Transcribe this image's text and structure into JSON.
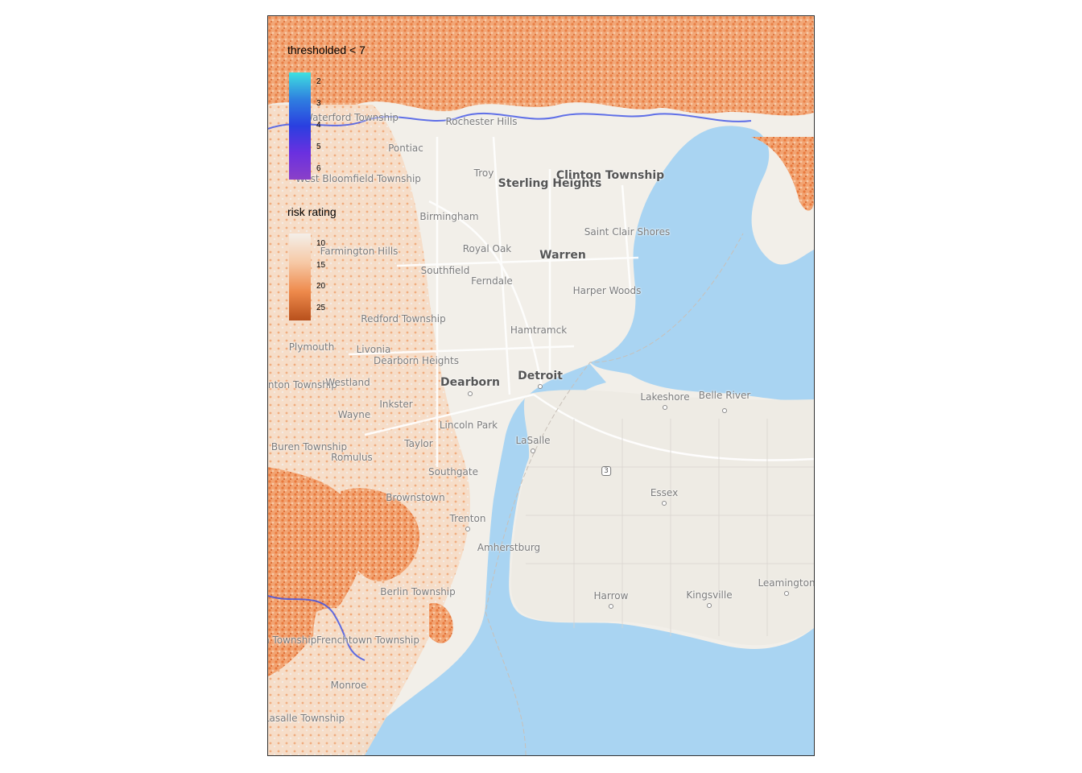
{
  "legends": [
    {
      "title": "thresholded < 7",
      "ticks": [
        "2",
        "3",
        "4",
        "5",
        "6"
      ],
      "colors": [
        "#3fe0e0",
        "#2f7fe0",
        "#2a3fe0",
        "#6a30e0",
        "#8a40c8"
      ]
    },
    {
      "title": "risk rating",
      "ticks": [
        "10",
        "15",
        "20",
        "25"
      ],
      "colors": [
        "#f4efe9",
        "#f6c9a6",
        "#ee8a4c",
        "#b8501c"
      ]
    }
  ],
  "map": {
    "water_color": "#a9d4f2",
    "land_color": "#f2efe9",
    "risk_color": "#ee9a60",
    "place_labels": [
      {
        "text": "Waterford Township"
      },
      {
        "text": "Rochester Hills"
      },
      {
        "text": "Pontiac"
      },
      {
        "text": "Troy"
      },
      {
        "text": "Sterling Heights"
      },
      {
        "text": "Clinton Township"
      },
      {
        "text": "West Bloomfield Township"
      },
      {
        "text": "Birmingham"
      },
      {
        "text": "Royal Oak"
      },
      {
        "text": "Warren"
      },
      {
        "text": "Saint Clair Shores"
      },
      {
        "text": "Farmington Hills"
      },
      {
        "text": "Southfield"
      },
      {
        "text": "Ferndale"
      },
      {
        "text": "Harper Woods"
      },
      {
        "text": "Redford Township"
      },
      {
        "text": "Hamtramck"
      },
      {
        "text": "Plymouth"
      },
      {
        "text": "Livonia"
      },
      {
        "text": "Dearborn Heights"
      },
      {
        "text": "Dearborn"
      },
      {
        "text": "Detroit"
      },
      {
        "text": "Canton Township"
      },
      {
        "text": "Westland"
      },
      {
        "text": "Lakeshore"
      },
      {
        "text": "Belle River"
      },
      {
        "text": "Inkster"
      },
      {
        "text": "Wayne"
      },
      {
        "text": "Lincoln Park"
      },
      {
        "text": "LaSalle"
      },
      {
        "text": "Van Buren Township"
      },
      {
        "text": "Romulus"
      },
      {
        "text": "Taylor"
      },
      {
        "text": "Southgate"
      },
      {
        "text": "Essex"
      },
      {
        "text": "Brownstown"
      },
      {
        "text": "Trenton"
      },
      {
        "text": "Amherstburg"
      },
      {
        "text": "Leamington"
      },
      {
        "text": "Harrow"
      },
      {
        "text": "Kingsville"
      },
      {
        "text": "Berlin Township"
      },
      {
        "text": "Ash Township"
      },
      {
        "text": "Frenchtown Township"
      },
      {
        "text": "Monroe"
      },
      {
        "text": "Lasalle Township"
      }
    ],
    "highway_shield": "3"
  }
}
